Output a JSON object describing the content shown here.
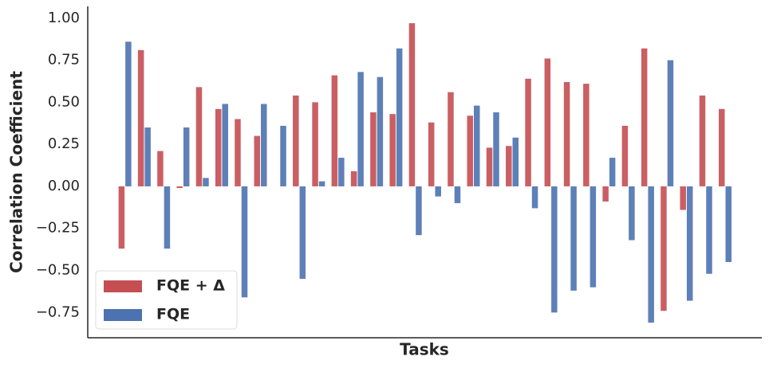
{
  "chart_data": {
    "type": "bar",
    "x_label": "Tasks",
    "y_label": "Correlation  Coefficient",
    "categories": [
      null,
      null,
      null,
      null,
      null,
      null,
      null,
      null,
      null,
      null,
      null,
      null,
      null,
      null,
      null,
      null,
      null,
      null,
      null,
      null,
      null,
      null,
      null,
      null,
      null,
      null,
      null,
      null,
      null,
      null,
      null,
      null
    ],
    "series": [
      {
        "name": "FQE + Δ",
        "color": "#c44e52",
        "values": [
          -0.37,
          0.81,
          0.21,
          -0.01,
          0.59,
          0.46,
          0.4,
          0.3,
          0,
          0.54,
          0.5,
          0.66,
          0.09,
          0.44,
          0.43,
          0.97,
          0.38,
          0.56,
          0.42,
          0.23,
          0.24,
          0.64,
          0.76,
          0.62,
          0.61,
          -0.09,
          0.36,
          0.82,
          -0.74,
          -0.14,
          0.54,
          0.46
        ]
      },
      {
        "name": "FQE",
        "color": "#4c72b0",
        "values": [
          0.86,
          0.35,
          -0.37,
          0.35,
          0.05,
          0.49,
          -0.66,
          0.49,
          0.36,
          -0.55,
          0.03,
          0.17,
          0.68,
          0.65,
          0.82,
          -0.29,
          -0.06,
          -0.1,
          0.48,
          0.44,
          0.29,
          -0.13,
          -0.75,
          -0.62,
          -0.6,
          0.17,
          -0.32,
          -0.81,
          0.75,
          -0.68,
          -0.52,
          -0.45
        ]
      }
    ],
    "ylim": [
      -0.9,
      1.07
    ],
    "yticks": [
      {
        "value": -0.75,
        "label": "−0.75"
      },
      {
        "value": -0.5,
        "label": "−0.50"
      },
      {
        "value": -0.25,
        "label": "−0.25"
      },
      {
        "value": 0,
        "label": "0.00"
      },
      {
        "value": 0.25,
        "label": "0.25"
      },
      {
        "value": 0.5,
        "label": "0.50"
      },
      {
        "value": 0.75,
        "label": "0.75"
      },
      {
        "value": 1,
        "label": "1.00"
      }
    ],
    "legend": "lower left"
  }
}
